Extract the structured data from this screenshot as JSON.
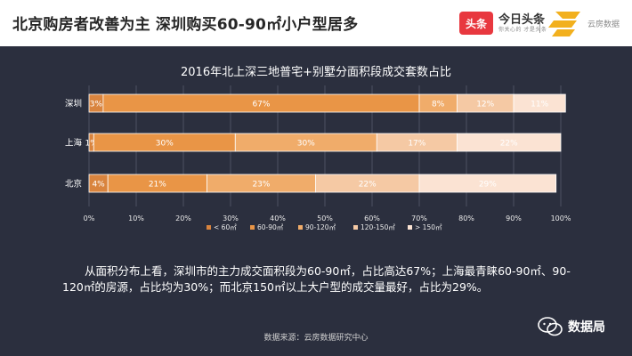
{
  "header": {
    "headline": "北京购房者改善为主  深圳购买60-90㎡小户型居多",
    "brand_box": "头条",
    "brand_name": "今日头条",
    "brand_sub": "你关心的 才是头条",
    "brand2": "云房数据"
  },
  "chart_data": {
    "type": "bar",
    "orientation": "horizontal",
    "stacked": true,
    "title": "2016年北上深三地普宅+别墅分面积段成交套数占比",
    "categories": [
      "深圳",
      "上海",
      "北京"
    ],
    "series": [
      {
        "name": "< 60㎡",
        "values": [
          3,
          1,
          4
        ],
        "labels": [
          "3%",
          "1%",
          "4%"
        ]
      },
      {
        "name": "60-90㎡",
        "values": [
          67,
          30,
          21
        ],
        "labels": [
          "67%",
          "30%",
          "21%"
        ]
      },
      {
        "name": "90-120㎡",
        "values": [
          8,
          30,
          23
        ],
        "labels": [
          "8%",
          "30%",
          "23%"
        ]
      },
      {
        "name": "120-150㎡",
        "values": [
          12,
          17,
          22
        ],
        "labels": [
          "12%",
          "17%",
          "22%"
        ]
      },
      {
        "name": "> 150㎡",
        "values": [
          11,
          22,
          29
        ],
        "labels": [
          "11%",
          "22%",
          "29%"
        ]
      }
    ],
    "x_ticks": [
      "0%",
      "10%",
      "20%",
      "30%",
      "40%",
      "50%",
      "60%",
      "70%",
      "80%",
      "90%",
      "100%"
    ],
    "xlim": [
      0,
      100
    ],
    "grid": true,
    "legend": "bottom"
  },
  "text": {
    "paragraph": "从面积分布上看，深圳市的主力成交面积段为60-90㎡，占比高达67%；上海最青睐60-90㎡、90-120㎡的房源，占比均为30%；而北京150㎡以上大户型的成交量最好，占比为29%。",
    "source": "数据来源：云房数据研究中心",
    "footer_name": "数据局"
  },
  "colors": {
    "background": "#2b2f3e",
    "series": [
      "#d9843e",
      "#e99546",
      "#f0ac6a",
      "#f5c9a4",
      "#fbe3d3"
    ],
    "label": "#ffffff",
    "grid": "#4c5162"
  }
}
